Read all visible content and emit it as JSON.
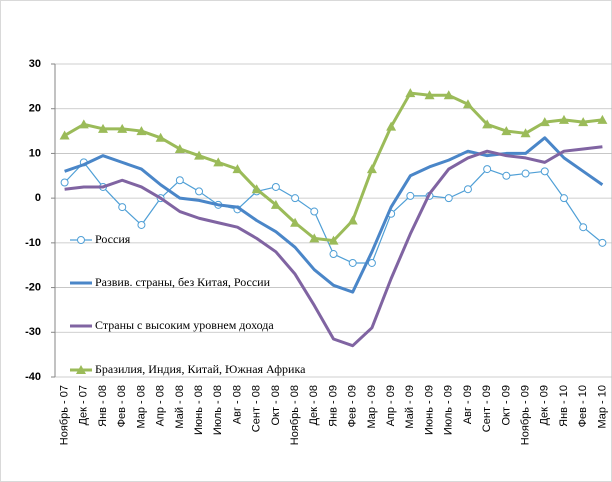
{
  "chart_data": {
    "type": "line",
    "categories": [
      "Ноябрь - 07",
      "Дек - 07",
      "Янв - 08",
      "Фев - 08",
      "Мар - 08",
      "Апр - 08",
      "Май - 08",
      "Июнь - 08",
      "Июль - 08",
      "Авг - 08",
      "Сент - 08",
      "Окт - 08",
      "Ноябрь - 08",
      "Дек - 08",
      "Янв - 09",
      "Фев - 09",
      "Мар - 09",
      "Апр - 09",
      "Май - 09",
      "Июнь - 09",
      "Июль - 09",
      "Авг - 09",
      "Сент - 09",
      "Окт - 09",
      "Ноябрь - 09",
      "Дек - 09",
      "Янв - 10",
      "Фев - 10",
      "Мар - 10"
    ],
    "series": [
      {
        "name": "Россия",
        "color": "#4f9fd6",
        "width": 1.2,
        "marker": "circle",
        "values": [
          3.5,
          8,
          2.5,
          -2,
          -6,
          0,
          4,
          1.5,
          -1.5,
          -2.5,
          1.5,
          2.5,
          0,
          -3,
          -12.5,
          -14.5,
          -14.5,
          -3.5,
          0.5,
          0.5,
          0,
          2,
          6.5,
          5,
          5.5,
          6,
          0,
          -6.5,
          -10
        ]
      },
      {
        "name": "Развив. страны, без Китая, России",
        "color": "#4a86c8",
        "width": 3,
        "marker": null,
        "values": [
          6,
          7.5,
          9.5,
          8,
          6.5,
          3,
          0,
          -0.5,
          -1.5,
          -2,
          -5,
          -7.5,
          -11,
          -16,
          -19.5,
          -21,
          -12,
          -2,
          5,
          7,
          8.5,
          10.5,
          9.5,
          10,
          10,
          13.5,
          9,
          6,
          3
        ]
      },
      {
        "name": "Страны с высоким уровнем дохода",
        "color": "#8064a2",
        "width": 3,
        "marker": null,
        "values": [
          2,
          2.5,
          2.5,
          4,
          2.5,
          0,
          -3,
          -4.5,
          -5.5,
          -6.5,
          -9,
          -12,
          -17,
          -24,
          -31.5,
          -33,
          -29,
          -18,
          -8,
          1,
          6.5,
          9,
          10.5,
          9.5,
          9,
          8,
          10.5,
          11,
          11.5
        ]
      },
      {
        "name": "Бразилия, Индия, Китай, Южная Африка",
        "color": "#9bbb59",
        "width": 3,
        "marker": "triangle",
        "values": [
          14,
          16.5,
          15.5,
          15.5,
          15,
          13.5,
          11,
          9.5,
          8,
          6.5,
          2,
          -1.5,
          -5.5,
          -9,
          -9.5,
          -5,
          6.5,
          16,
          23.5,
          23,
          23,
          21,
          16.5,
          15,
          14.5,
          17,
          17.5,
          17,
          17.5
        ]
      }
    ],
    "ylim": [
      -40,
      30
    ],
    "yticks": [
      -40,
      -30,
      -20,
      -10,
      0,
      10,
      20,
      30
    ],
    "grid": true
  }
}
